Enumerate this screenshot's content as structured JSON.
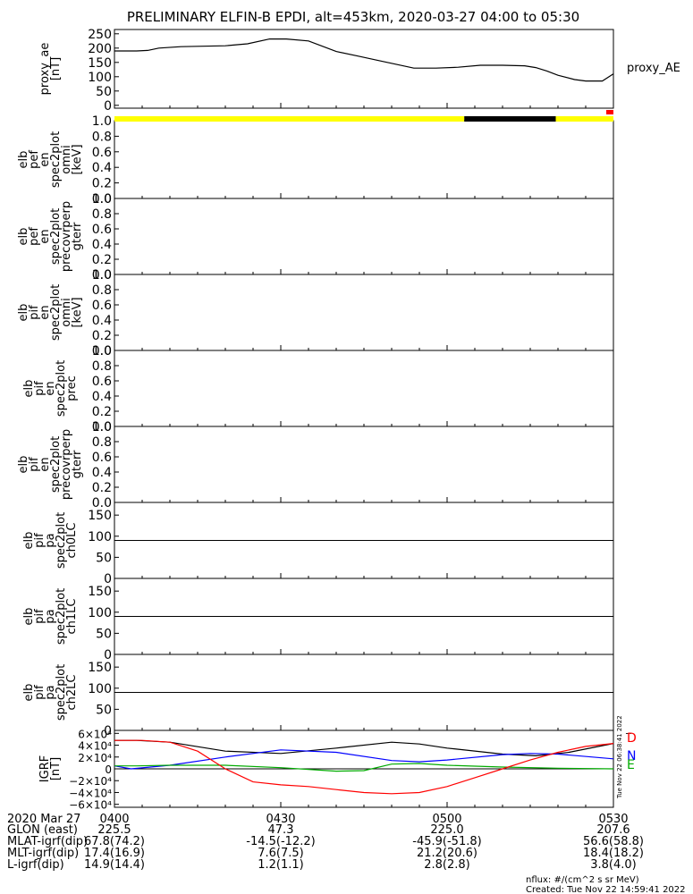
{
  "title": "PRELIMINARY ELFIN-B EPDI, alt=453km, 2020-03-27 04:00 to 05:30",
  "chart_data": [
    {
      "type": "line",
      "panel": "proxy_ae",
      "ylabel": [
        "proxy_ae",
        "[nT]"
      ],
      "yticks": [
        "250",
        "200",
        "150",
        "100",
        "50",
        "0"
      ],
      "ylim": [
        -10,
        265
      ],
      "legend": "proxy_AE",
      "series": [
        {
          "name": "proxy_AE",
          "color": "#000000",
          "x": [
            0,
            4,
            6,
            8,
            12,
            20,
            24,
            28,
            31,
            35,
            40,
            44,
            48,
            54,
            58,
            62,
            66,
            70,
            74,
            76,
            78,
            80,
            83,
            85,
            88,
            90
          ],
          "y": [
            190,
            190,
            192,
            200,
            205,
            208,
            215,
            232,
            232,
            225,
            188,
            172,
            155,
            130,
            130,
            133,
            140,
            140,
            138,
            132,
            120,
            105,
            90,
            85,
            85,
            110
          ]
        }
      ]
    },
    {
      "type": "heatmap",
      "panel": "elb_pef_en_spec2plot_omni",
      "ylabel": [
        "elb",
        "pef",
        "en",
        "spec2plot",
        "omni",
        "[keV]"
      ],
      "yticks": [
        "1.0",
        "0.8",
        "0.6",
        "0.4",
        "0.2",
        "0.0"
      ],
      "ylim": [
        0,
        1
      ]
    },
    {
      "type": "heatmap",
      "panel": "elb_pef_en_spec2plot_precovrperp",
      "ylabel": [
        "elb",
        "pef",
        "en",
        "spec2plot",
        "precovrperp",
        "gterr"
      ],
      "yticks": [
        "1.0",
        "0.8",
        "0.6",
        "0.4",
        "0.2",
        "0.0"
      ],
      "ylim": [
        0,
        1
      ]
    },
    {
      "type": "heatmap",
      "panel": "elb_pif_en_spec2plot_omni",
      "ylabel": [
        "elb",
        "pif",
        "en",
        "spec2plot",
        "omni",
        "[keV]"
      ],
      "yticks": [
        "1.0",
        "0.8",
        "0.6",
        "0.4",
        "0.2",
        "0.0"
      ],
      "ylim": [
        0,
        1
      ]
    },
    {
      "type": "heatmap",
      "panel": "elb_pif_en_spec2plot_prec",
      "ylabel": [
        "elb",
        "pif",
        "en",
        "spec2plot",
        "prec"
      ],
      "yticks": [
        "1.0",
        "0.8",
        "0.6",
        "0.4",
        "0.2",
        "0.0"
      ],
      "ylim": [
        0,
        1
      ]
    },
    {
      "type": "heatmap",
      "panel": "elb_pif_en_spec2plot_precovrperp",
      "ylabel": [
        "elb",
        "pif",
        "en",
        "spec2plot",
        "precovrperp",
        "gterr"
      ],
      "yticks": [
        "1.0",
        "0.8",
        "0.6",
        "0.4",
        "0.2",
        "0.0"
      ],
      "ylim": [
        0,
        1
      ]
    },
    {
      "type": "heatmap",
      "panel": "elb_pif_pa_spec2plot_ch0LC",
      "ylabel": [
        "elb",
        "pif",
        "pa",
        "spec2plot",
        "ch0LC"
      ],
      "yticks": [
        "150",
        "100",
        "50",
        "0"
      ],
      "ylim": [
        0,
        180
      ],
      "reference_line": 90
    },
    {
      "type": "heatmap",
      "panel": "elb_pif_pa_spec2plot_ch1LC",
      "ylabel": [
        "elb",
        "pif",
        "pa",
        "spec2plot",
        "ch1LC"
      ],
      "yticks": [
        "150",
        "100",
        "50",
        "0"
      ],
      "ylim": [
        0,
        180
      ],
      "reference_line": 90
    },
    {
      "type": "heatmap",
      "panel": "elb_pif_pa_spec2plot_ch2LC",
      "ylabel": [
        "elb",
        "pif",
        "pa",
        "spec2plot",
        "ch2LC"
      ],
      "yticks": [
        "150",
        "100",
        "50",
        "0"
      ],
      "ylim": [
        0,
        180
      ],
      "reference_line": 90
    },
    {
      "type": "line",
      "panel": "igrf",
      "ylabel": [
        "IGRF",
        "[nT]"
      ],
      "yticks": [
        "6×10⁴",
        "4×10⁴",
        "2×10⁴",
        "0",
        "−2×10⁴",
        "−4×10⁴",
        "−6×10⁴"
      ],
      "ylim": [
        -65000,
        65000
      ],
      "legend": [
        "D",
        "N",
        "E"
      ],
      "series": [
        {
          "name": "D",
          "color": "#000000",
          "x": [
            0,
            4,
            10,
            20,
            30,
            40,
            50,
            55,
            60,
            70,
            76,
            82,
            90
          ],
          "y": [
            48000,
            48000,
            45000,
            30000,
            26000,
            35000,
            45000,
            42000,
            35000,
            25000,
            22000,
            28000,
            43000
          ]
        },
        {
          "name": "N",
          "color": "#0000ff",
          "x": [
            0,
            3,
            10,
            20,
            30,
            40,
            50,
            55,
            60,
            70,
            75,
            80,
            90
          ],
          "y": [
            5000,
            0,
            6000,
            20000,
            32000,
            28000,
            14000,
            12000,
            15000,
            24000,
            26000,
            25000,
            17000
          ]
        },
        {
          "name": "E",
          "color": "#00aa00",
          "x": [
            0,
            4,
            10,
            20,
            30,
            40,
            45,
            50,
            55,
            60,
            70,
            80,
            90
          ],
          "y": [
            5000,
            5000,
            6000,
            6000,
            2000,
            -4000,
            -3000,
            8000,
            9000,
            6000,
            3000,
            1000,
            0
          ]
        },
        {
          "name": "T",
          "color": "#ff0000",
          "x": [
            0,
            5,
            10,
            15,
            20,
            25,
            30,
            35,
            40,
            45,
            50,
            55,
            60,
            65,
            70,
            75,
            80,
            85,
            90
          ],
          "y": [
            48000,
            48000,
            45000,
            30000,
            0,
            -22000,
            -27000,
            -30000,
            -35000,
            -40000,
            -42000,
            -40000,
            -30000,
            -15000,
            0,
            15000,
            28000,
            38000,
            43000
          ]
        }
      ]
    }
  ],
  "quality_bar": {
    "colors": {
      "good": "#ffff00",
      "gap": "#000000",
      "flag": "#ff0000"
    },
    "segments": [
      {
        "start": 0,
        "end": 63.1,
        "state": "good"
      },
      {
        "start": 63.1,
        "end": 79.6,
        "state": "gap"
      },
      {
        "start": 79.6,
        "end": 90,
        "state": "good"
      }
    ]
  },
  "x_axis": {
    "ticks": [
      {
        "t": 0,
        "label": "0400"
      },
      {
        "t": 30,
        "label": "0430"
      },
      {
        "t": 60,
        "label": "0500"
      },
      {
        "t": 90,
        "label": "0530"
      }
    ],
    "minor_step": 5
  },
  "orbit_table": {
    "date_label": "2020 Mar 27",
    "rows": [
      {
        "label": "GLON (east)",
        "values": [
          "225.5",
          "47.3",
          "225.0",
          "207.6"
        ]
      },
      {
        "label": "MLAT-igrf(dip)",
        "values": [
          "67.8(74.2)",
          "-14.5(-12.2)",
          "-45.9(-51.8)",
          "56.6(58.8)"
        ]
      },
      {
        "label": "MLT-igrf(dip)",
        "values": [
          "17.4(16.9)",
          "7.6(7.5)",
          "21.2(20.6)",
          "18.4(18.2)"
        ]
      },
      {
        "label": "L-igrf(dip)",
        "values": [
          "14.9(14.4)",
          "1.2(1.1)",
          "2.8(2.8)",
          "3.8(4.0)"
        ]
      }
    ]
  },
  "footer": {
    "units": "nflux: #/(cm^2 s sr MeV)",
    "created": "Created: Tue Nov 22 14:59:41 2022",
    "side_stamp": "Tue Nov 22 06:38:41 2022"
  }
}
